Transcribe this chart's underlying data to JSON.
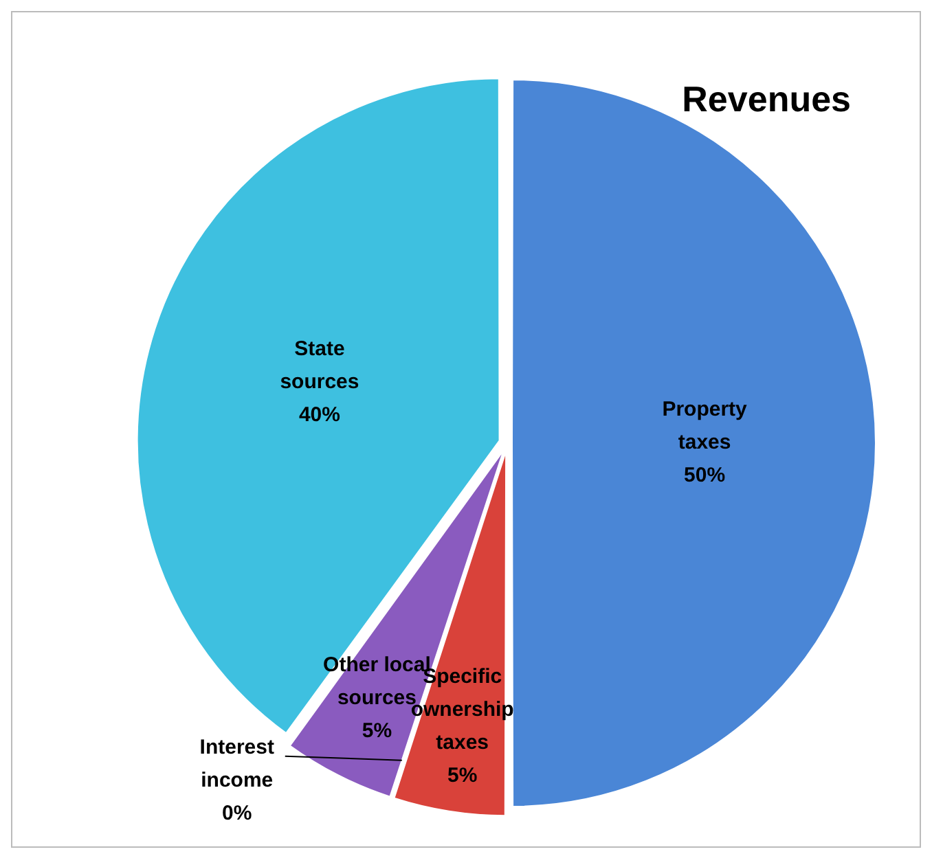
{
  "chart_data": {
    "type": "pie",
    "title": "Revenues",
    "categories": [
      "Property taxes",
      "Specific ownership taxes",
      "Interest income",
      "Other local sources",
      "State sources"
    ],
    "values": [
      50,
      5,
      0,
      5,
      40
    ],
    "value_labels": [
      "50%",
      "5%",
      "0%",
      "5%",
      "40%"
    ],
    "colors": [
      "#4a86d6",
      "#d9423a",
      "#9bbb59",
      "#8a5bbf",
      "#3ec0e0"
    ],
    "legend": false
  }
}
